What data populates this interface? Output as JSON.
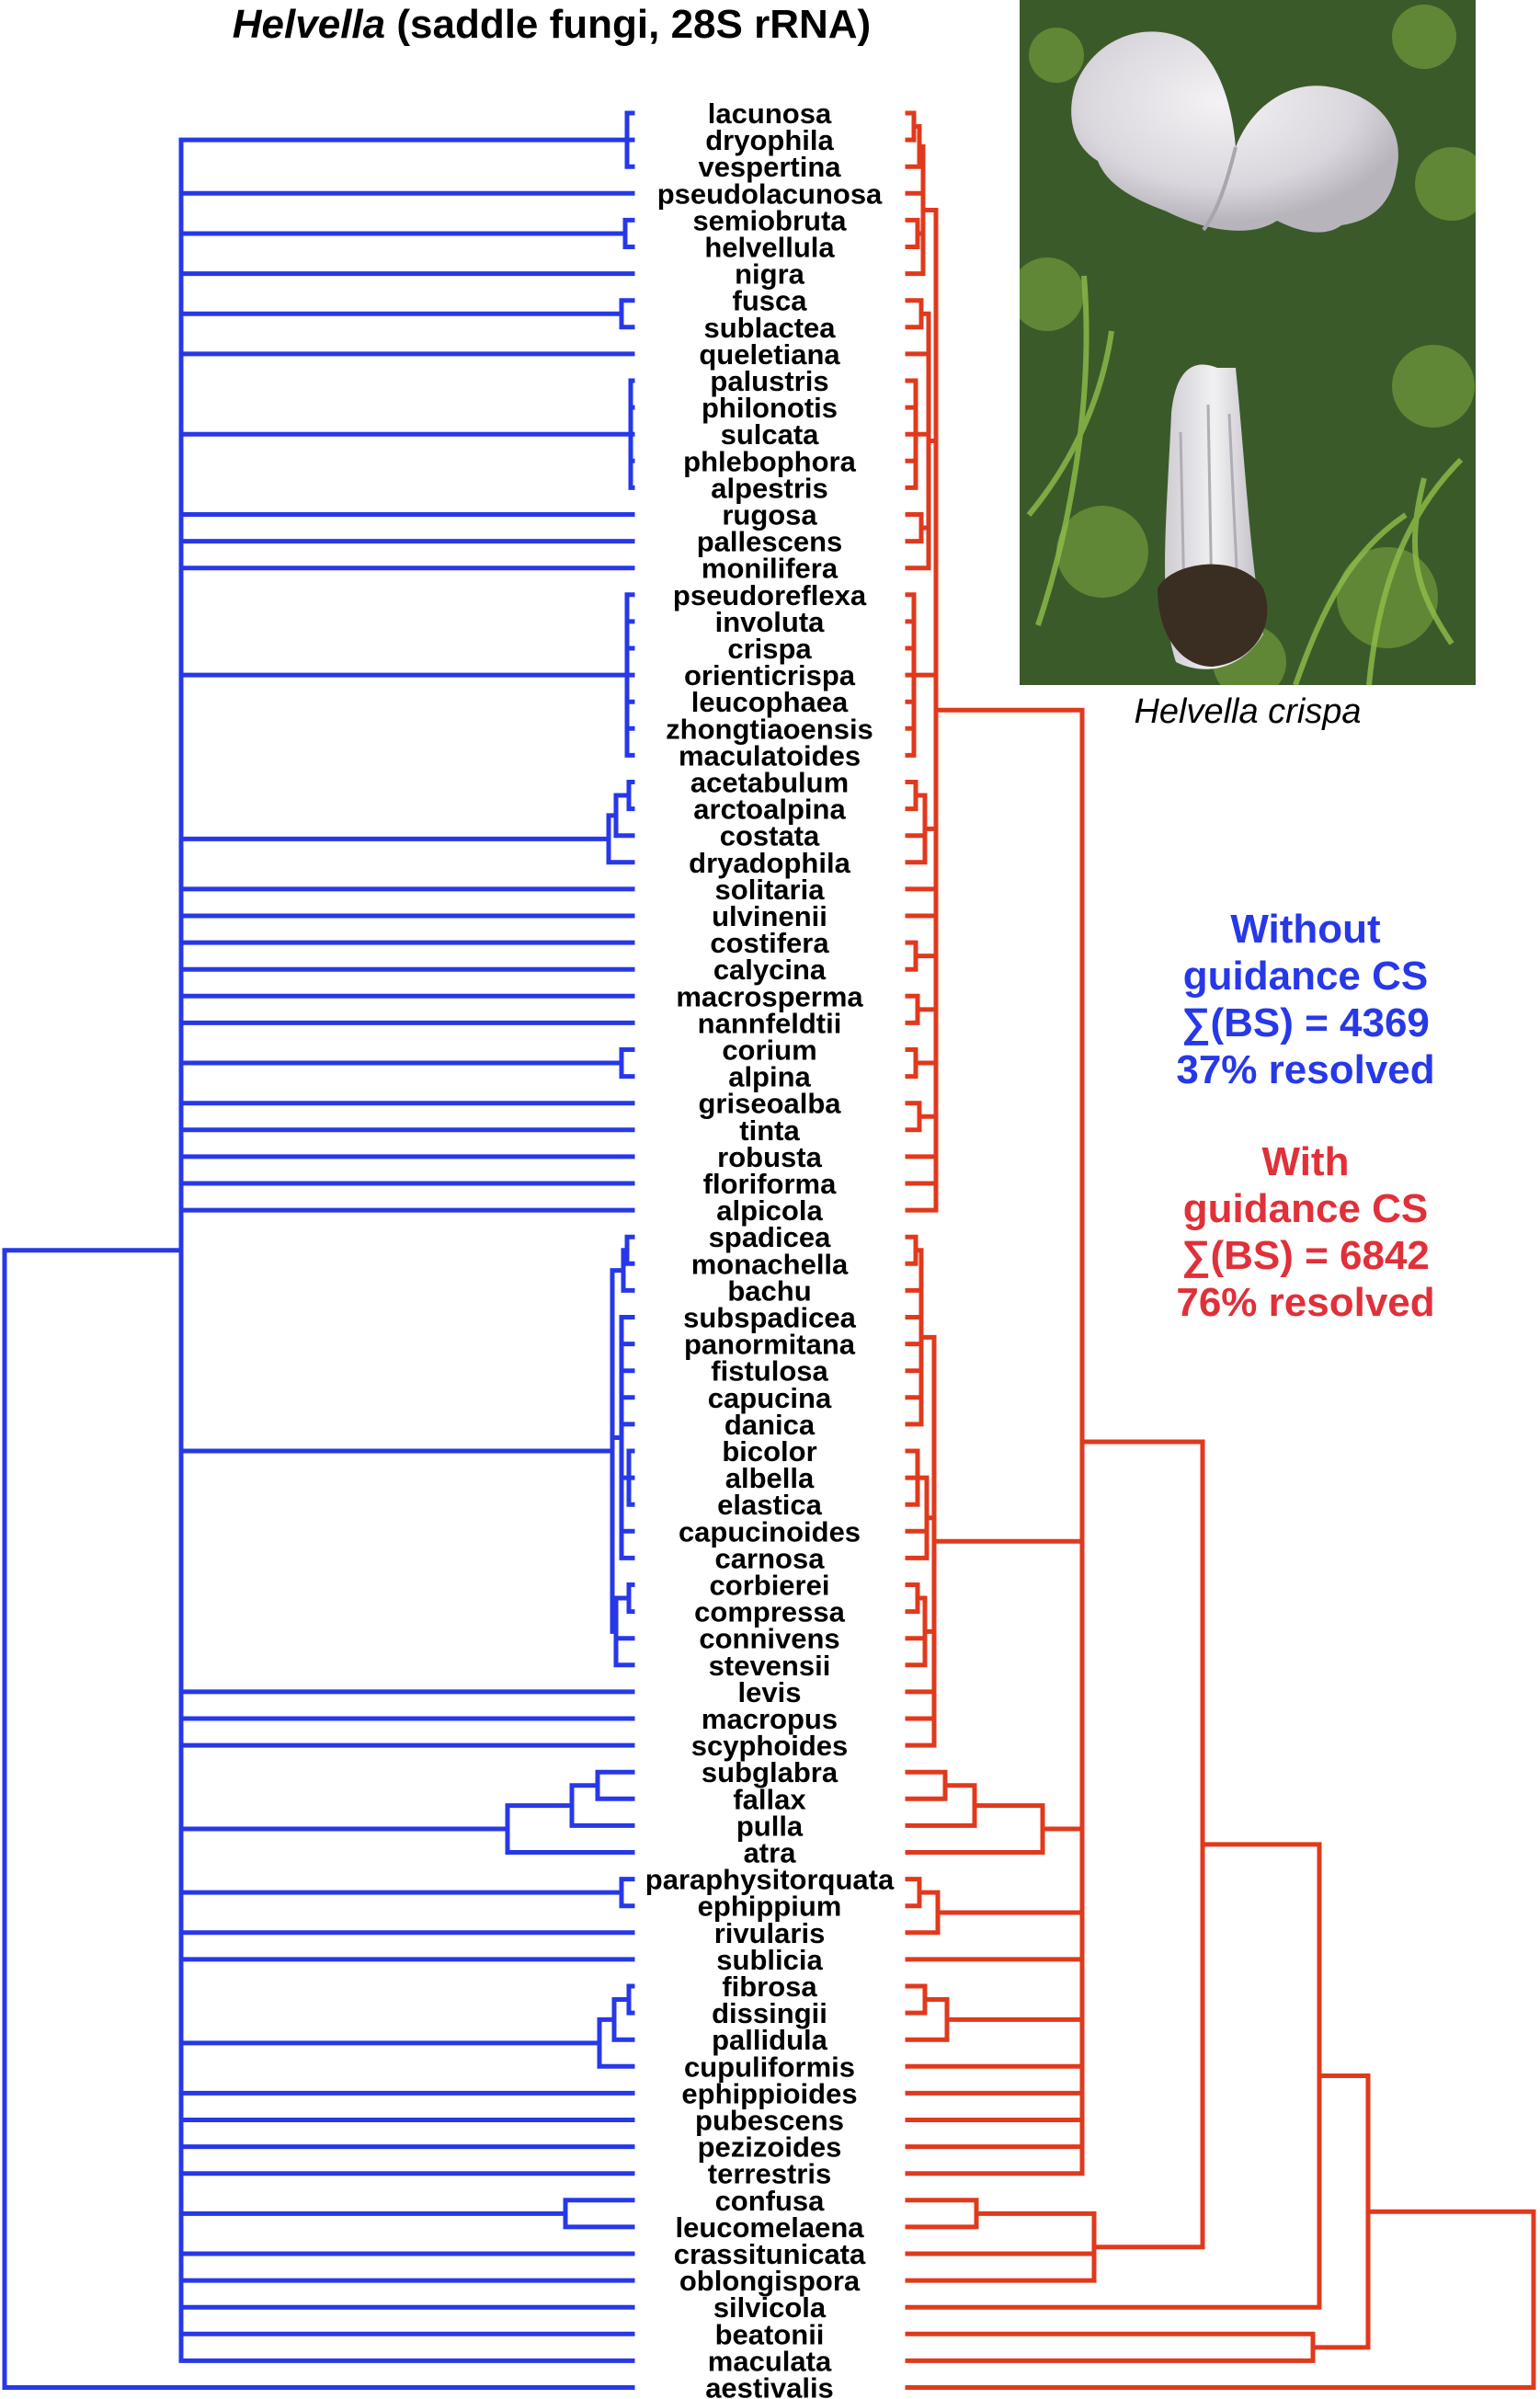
{
  "title": {
    "genus": "Helvella",
    "rest": " (saddle fungi, 28S rRNA)"
  },
  "photo_caption": "Helvella crispa",
  "legend_without": {
    "line1": "Without",
    "line2": "guidance CS",
    "line3": "∑(BS) = 4369",
    "line4": "37% resolved",
    "color": "#2738e8"
  },
  "legend_with": {
    "line1": "With",
    "line2": "guidance CS",
    "line3": "∑(BS) = 6842",
    "line4": "76% resolved",
    "color": "#e0303a"
  },
  "taxa": [
    "lacunosa",
    "dryophila",
    "vespertina",
    "pseudolacunosa",
    "semiobruta",
    "helvellula",
    "nigra",
    "fusca",
    "sublactea",
    "queletiana",
    "palustris",
    "philonotis",
    "sulcata",
    "phlebophora",
    "alpestris",
    "rugosa",
    "pallescens",
    "monilifera",
    "pseudoreflexa",
    "involuta",
    "crispa",
    "orienticrispa",
    "leucophaea",
    "zhongtiaoensis",
    "maculatoides",
    "acetabulum",
    "arctoalpina",
    "costata",
    "dryadophila",
    "solitaria",
    "ulvinenii",
    "costifera",
    "calycina",
    "macrosperma",
    "nannfeldtii",
    "corium",
    "alpina",
    "griseoalba",
    "tinta",
    "robusta",
    "floriforma",
    "alpicola",
    "spadicea",
    "monachella",
    "bachu",
    "subspadicea",
    "panormitana",
    "fistulosa",
    "capucina",
    "danica",
    "bicolor",
    "albella",
    "elastica",
    "capucinoides",
    "carnosa",
    "corbierei",
    "compressa",
    "connivens",
    "stevensii",
    "levis",
    "macropus",
    "scyphoides",
    "subglabra",
    "fallax",
    "pulla",
    "atra",
    "paraphysitorquata",
    "ephippium",
    "rivularis",
    "sublicia",
    "fibrosa",
    "dissingii",
    "pallidula",
    "cupuliformis",
    "ephippioides",
    "pubescens",
    "pezizoides",
    "terrestris",
    "confusa",
    "leucomelaena",
    "crassitunicata",
    "oblongispora",
    "silvicola",
    "beatonii",
    "maculata",
    "aestivalis"
  ],
  "colors": {
    "left_tree": "#2738e8",
    "right_tree": "#e0391c"
  }
}
